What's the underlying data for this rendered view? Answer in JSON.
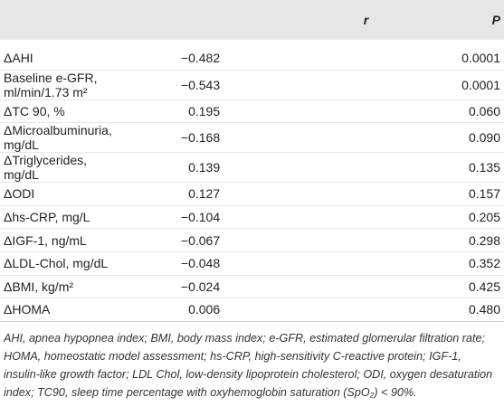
{
  "table": {
    "columns": [
      "",
      "r",
      "P"
    ],
    "rows": [
      [
        "ΔAHI",
        "−0.482",
        "0.0001"
      ],
      [
        "Baseline e-GFR, ml/min/1.73 m²",
        "−0.543",
        "0.0001"
      ],
      [
        "ΔTC 90, %",
        "0.195",
        "0.060"
      ],
      [
        "ΔMicroalbuminuria, mg/dL",
        "−0.168",
        "0.090"
      ],
      [
        "ΔTriglycerides, mg/dL",
        "0.139",
        "0.135"
      ],
      [
        "ΔODI",
        "0.127",
        "0.157"
      ],
      [
        "Δhs-CRP, mg/L",
        "−0.104",
        "0.205"
      ],
      [
        "ΔIGF-1, ng/mL",
        "−0.067",
        "0.298"
      ],
      [
        "ΔLDL-Chol, mg/dL",
        "−0.048",
        "0.352"
      ],
      [
        "ΔBMI, kg/m²",
        "−0.024",
        "0.425"
      ],
      [
        "ΔHOMA",
        "0.006",
        "0.480"
      ]
    ],
    "footnote": "AHI, apnea hypopnea index; BMI, body mass index; e-GFR, estimated glomerular filtration rate; HOMA, homeostatic model assessment; hs-CRP, high-sensitivity C-reactive protein; IGF-1, insulin-like growth factor; LDL Chol, low-density lipoprotein cholesterol; ODI, oxygen desaturation index; TC90, sleep time percentage with oxyhemoglobin saturation (SpO₂) < 90%."
  }
}
